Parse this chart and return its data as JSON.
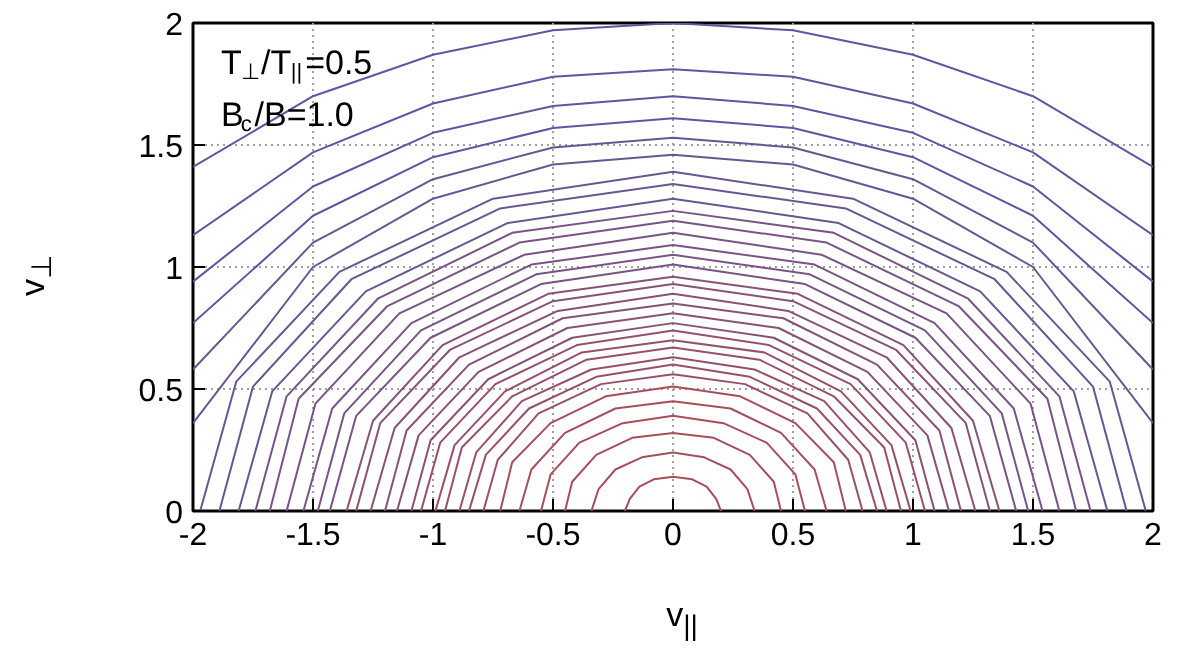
{
  "chart_data": {
    "type": "line",
    "xlabel": "v$_{||}$",
    "ylabel": "v$_{⊥}$",
    "annotations": [
      "T$_{⊥}$/T$_{||}$=0.5",
      "B$_{c}$/B=1.0"
    ],
    "xlim": [
      -2,
      2
    ],
    "ylim": [
      0,
      2
    ],
    "xticks": [
      -2,
      -1.5,
      -1,
      -0.5,
      0,
      0.5,
      1,
      1.5,
      2
    ],
    "yticks": [
      0,
      0.5,
      1,
      1.5,
      2
    ],
    "grid": true,
    "series": [
      {
        "color": "#a84e5a",
        "x": [
          -0.2,
          -0.18,
          -0.14,
          -0.08,
          0,
          0.08,
          0.14,
          0.18,
          0.2
        ],
        "values": [
          0,
          0.05,
          0.1,
          0.13,
          0.14,
          0.13,
          0.1,
          0.05,
          0
        ]
      },
      {
        "color": "#a84e5a",
        "x": [
          -0.34,
          -0.31,
          -0.24,
          -0.13,
          0,
          0.13,
          0.24,
          0.31,
          0.34
        ],
        "values": [
          0,
          0.09,
          0.17,
          0.22,
          0.24,
          0.22,
          0.17,
          0.09,
          0
        ]
      },
      {
        "color": "#a84e5a",
        "x": [
          -0.45,
          -0.42,
          -0.32,
          -0.17,
          0,
          0.17,
          0.32,
          0.42,
          0.45
        ],
        "values": [
          0,
          0.12,
          0.23,
          0.3,
          0.32,
          0.3,
          0.23,
          0.12,
          0
        ]
      },
      {
        "color": "#a84e5a",
        "x": [
          -0.55,
          -0.51,
          -0.39,
          -0.21,
          0,
          0.21,
          0.39,
          0.51,
          0.55
        ],
        "values": [
          0,
          0.15,
          0.28,
          0.36,
          0.39,
          0.36,
          0.28,
          0.15,
          0
        ]
      },
      {
        "color": "#a84e5a",
        "x": [
          -0.64,
          -0.59,
          -0.45,
          -0.24,
          0,
          0.24,
          0.45,
          0.59,
          0.64
        ],
        "values": [
          0,
          0.17,
          0.32,
          0.42,
          0.45,
          0.42,
          0.32,
          0.17,
          0
        ]
      },
      {
        "color": "#a84e5a",
        "x": [
          -0.72,
          -0.67,
          -0.51,
          -0.28,
          0,
          0.28,
          0.51,
          0.67,
          0.72
        ],
        "values": [
          0,
          0.2,
          0.36,
          0.47,
          0.51,
          0.47,
          0.36,
          0.2,
          0
        ]
      },
      {
        "color": "#985068",
        "x": [
          -0.79,
          -0.73,
          -0.56,
          -0.3,
          0,
          0.3,
          0.56,
          0.73,
          0.79
        ],
        "values": [
          0,
          0.21,
          0.4,
          0.52,
          0.56,
          0.52,
          0.4,
          0.21,
          0
        ]
      },
      {
        "color": "#985068",
        "x": [
          -0.85,
          -0.78,
          -0.6,
          -0.32,
          0,
          0.32,
          0.6,
          0.78,
          0.85
        ],
        "values": [
          0,
          0.23,
          0.42,
          0.55,
          0.6,
          0.55,
          0.42,
          0.23,
          0
        ]
      },
      {
        "color": "#985068",
        "x": [
          -0.89,
          -0.82,
          -0.63,
          -0.34,
          0,
          0.34,
          0.63,
          0.82,
          0.89
        ],
        "values": [
          0,
          0.24,
          0.45,
          0.58,
          0.63,
          0.58,
          0.45,
          0.24,
          0
        ]
      },
      {
        "color": "#985068",
        "x": [
          -0.95,
          -0.88,
          -0.67,
          -0.36,
          0,
          0.36,
          0.67,
          0.88,
          0.95
        ],
        "values": [
          0,
          0.26,
          0.47,
          0.62,
          0.67,
          0.62,
          0.47,
          0.26,
          0
        ]
      },
      {
        "color": "#985068",
        "x": [
          -0.99,
          -0.91,
          -0.7,
          -0.38,
          0,
          0.38,
          0.7,
          0.91,
          0.99
        ],
        "values": [
          0,
          0.27,
          0.49,
          0.65,
          0.7,
          0.65,
          0.49,
          0.27,
          0
        ]
      },
      {
        "color": "#985068",
        "x": [
          -1.05,
          -0.97,
          -0.74,
          -0.4,
          0,
          0.4,
          0.74,
          0.97,
          1.05
        ],
        "values": [
          0,
          0.28,
          0.52,
          0.68,
          0.74,
          0.68,
          0.52,
          0.28,
          0
        ]
      },
      {
        "color": "#885276",
        "x": [
          -1.09,
          -1.01,
          -0.77,
          -0.42,
          0,
          0.42,
          0.77,
          1.01,
          1.09
        ],
        "values": [
          0,
          0.29,
          0.54,
          0.71,
          0.77,
          0.71,
          0.54,
          0.29,
          0
        ]
      },
      {
        "color": "#885276",
        "x": [
          -1.15,
          -1.06,
          -0.81,
          -0.44,
          0,
          0.44,
          0.81,
          1.06,
          1.15
        ],
        "values": [
          0,
          0.31,
          0.57,
          0.75,
          0.81,
          0.75,
          0.57,
          0.31,
          0
        ]
      },
      {
        "color": "#885276",
        "x": [
          -1.2,
          -1.11,
          -0.85,
          -0.46,
          0,
          0.46,
          0.85,
          1.11,
          1.2
        ],
        "values": [
          0,
          0.33,
          0.6,
          0.79,
          0.85,
          0.79,
          0.6,
          0.33,
          0
        ]
      },
      {
        "color": "#885276",
        "x": [
          -1.26,
          -1.16,
          -0.89,
          -0.48,
          0,
          0.48,
          0.89,
          1.16,
          1.26
        ],
        "values": [
          0,
          0.34,
          0.63,
          0.82,
          0.89,
          0.82,
          0.63,
          0.34,
          0
        ]
      },
      {
        "color": "#885276",
        "x": [
          -1.32,
          -1.22,
          -0.93,
          -0.5,
          0,
          0.5,
          0.93,
          1.22,
          1.32
        ],
        "values": [
          0,
          0.36,
          0.66,
          0.86,
          0.93,
          0.86,
          0.66,
          0.36,
          0
        ]
      },
      {
        "color": "#885276",
        "x": [
          -1.36,
          -1.25,
          -0.96,
          -0.52,
          0,
          0.52,
          0.96,
          1.25,
          1.36
        ],
        "values": [
          0,
          0.37,
          0.68,
          0.89,
          0.96,
          0.89,
          0.68,
          0.37,
          0
        ]
      },
      {
        "color": "#785484",
        "x": [
          -1.43,
          -1.32,
          -1.01,
          -0.55,
          0,
          0.55,
          1.01,
          1.32,
          1.43
        ],
        "values": [
          0,
          0.39,
          0.71,
          0.93,
          1.01,
          0.93,
          0.71,
          0.39,
          0
        ]
      },
      {
        "color": "#785484",
        "x": [
          -1.48,
          -1.37,
          -1.05,
          -0.57,
          0,
          0.57,
          1.05,
          1.37,
          1.48
        ],
        "values": [
          0,
          0.4,
          0.74,
          0.97,
          1.05,
          0.97,
          0.74,
          0.4,
          0
        ]
      },
      {
        "color": "#785484",
        "x": [
          -1.54,
          -1.42,
          -1.09,
          -0.59,
          0,
          0.59,
          1.09,
          1.42,
          1.54
        ],
        "values": [
          0,
          0.42,
          0.77,
          1.01,
          1.09,
          1.01,
          0.77,
          0.42,
          0
        ]
      },
      {
        "color": "#785484",
        "x": [
          -1.61,
          -1.49,
          -1.14,
          -0.62,
          0,
          0.62,
          1.14,
          1.49,
          1.61
        ],
        "values": [
          0,
          0.44,
          0.81,
          1.05,
          1.14,
          1.05,
          0.81,
          0.44,
          0
        ]
      },
      {
        "color": "#785484",
        "x": [
          -1.68,
          -1.56,
          -1.19,
          -0.64,
          0,
          0.64,
          1.19,
          1.56,
          1.68
        ],
        "values": [
          0,
          0.46,
          0.84,
          1.1,
          1.19,
          1.1,
          0.84,
          0.46,
          0
        ]
      },
      {
        "color": "#785484",
        "x": [
          -1.74,
          -1.61,
          -1.23,
          -0.67,
          0,
          0.67,
          1.23,
          1.61,
          1.74
        ],
        "values": [
          0,
          0.47,
          0.87,
          1.14,
          1.23,
          1.14,
          0.87,
          0.47,
          0
        ]
      },
      {
        "color": "#685692",
        "x": [
          -1.81,
          -1.67,
          -1.28,
          -0.69,
          0,
          0.69,
          1.28,
          1.67,
          1.81
        ],
        "values": [
          0,
          0.49,
          0.9,
          1.18,
          1.28,
          1.18,
          0.9,
          0.49,
          0
        ]
      },
      {
        "color": "#685692",
        "x": [
          -1.89,
          -1.75,
          -1.34,
          -0.72,
          0,
          0.72,
          1.34,
          1.75,
          1.89
        ],
        "values": [
          0,
          0.51,
          0.95,
          1.24,
          1.34,
          1.24,
          0.95,
          0.51,
          0
        ]
      },
      {
        "color": "#685692",
        "x": [
          -1.97,
          -1.82,
          -1.39,
          -0.75,
          0,
          0.75,
          1.39,
          1.82,
          1.97
        ],
        "values": [
          0,
          0.53,
          0.98,
          1.28,
          1.39,
          1.28,
          0.98,
          0.53,
          0
        ]
      },
      {
        "color": "#685692",
        "x": [
          -2,
          -1.5,
          -1,
          -0.5,
          0,
          0.5,
          1,
          1.5,
          2
        ],
        "values": [
          0.36,
          1.0,
          1.28,
          1.42,
          1.46,
          1.42,
          1.28,
          1.0,
          0.36
        ]
      },
      {
        "color": "#685692",
        "x": [
          -2,
          -1.5,
          -1,
          -0.5,
          0,
          0.5,
          1,
          1.5,
          2
        ],
        "values": [
          0.58,
          1.1,
          1.36,
          1.49,
          1.53,
          1.49,
          1.36,
          1.1,
          0.58
        ]
      },
      {
        "color": "#5a58a0",
        "x": [
          -2,
          -1.5,
          -1,
          -0.5,
          0,
          0.5,
          1,
          1.5,
          2
        ],
        "values": [
          0.77,
          1.21,
          1.45,
          1.57,
          1.61,
          1.57,
          1.45,
          1.21,
          0.77
        ]
      },
      {
        "color": "#5a58a0",
        "x": [
          -2,
          -1.5,
          -1,
          -0.5,
          0,
          0.5,
          1,
          1.5,
          2
        ],
        "values": [
          0.94,
          1.33,
          1.55,
          1.66,
          1.7,
          1.66,
          1.55,
          1.33,
          0.94
        ]
      },
      {
        "color": "#5a58a0",
        "x": [
          -2,
          -1.5,
          -1,
          -0.5,
          0,
          0.5,
          1,
          1.5,
          2
        ],
        "values": [
          1.13,
          1.47,
          1.67,
          1.78,
          1.81,
          1.78,
          1.67,
          1.47,
          1.13
        ]
      },
      {
        "color": "#5a58a0",
        "x": [
          -2,
          -1.5,
          -1,
          -0.5,
          0,
          0.5,
          1,
          1.5,
          2
        ],
        "values": [
          1.41,
          1.7,
          1.87,
          1.97,
          2.0,
          1.97,
          1.87,
          1.7,
          1.41
        ]
      }
    ]
  }
}
